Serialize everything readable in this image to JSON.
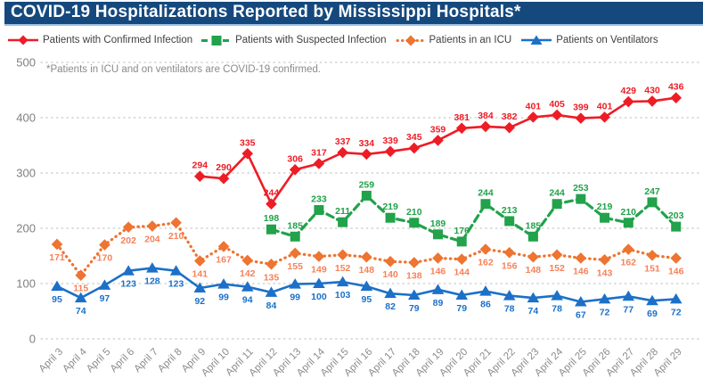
{
  "title": "COVID-19 Hospitalizations Reported by Mississippi Hospitals*",
  "footnote": "*Patients in ICU and on ventilators are COVID-19 confirmed.",
  "colors": {
    "title_bar_bg": "#15497E",
    "title_bar_underline": "#9DC3E6",
    "gridline": "#C8C8C8",
    "axis_label": "#7F7F7F",
    "confirmed_red": "#EE1C25",
    "suspected_green": "#21A24B",
    "icu_orange": "#ED7431",
    "ventilator_blue": "#1C70C8"
  },
  "chart_data": {
    "type": "line",
    "title": "COVID-19 Hospitalizations Reported by Mississippi Hospitals*",
    "footnote": "*Patients in ICU and on ventilators are COVID-19 confirmed.",
    "xlabel": "",
    "ylabel": "",
    "ylim": [
      0,
      500
    ],
    "yticks": [
      0,
      100,
      200,
      300,
      400,
      500
    ],
    "grid": "horizontal-dotted",
    "legend_position": "top",
    "x": [
      "April 3",
      "April 4",
      "April 5",
      "April 6",
      "April 7",
      "April 8",
      "April 9",
      "April 10",
      "April 11",
      "April 12",
      "April 13",
      "April 14",
      "April 15",
      "April 16",
      "April 17",
      "April 18",
      "April 19",
      "April 20",
      "April 21",
      "April 22",
      "April 23",
      "April 24",
      "April 25",
      "April 26",
      "April 27",
      "April 28",
      "April 29"
    ],
    "series": [
      {
        "name": "Patients with Confirmed Infection",
        "color": "#EE1C25",
        "marker": "diamond",
        "line": "solid",
        "label_position": "above",
        "values": [
          null,
          null,
          null,
          null,
          null,
          null,
          294,
          290,
          335,
          244,
          306,
          317,
          337,
          334,
          339,
          345,
          359,
          381,
          384,
          382,
          401,
          405,
          399,
          401,
          429,
          430,
          436
        ]
      },
      {
        "name": "Patients with Suspected Infection",
        "color": "#21A24B",
        "marker": "square",
        "line": "dashed",
        "label_position": "above",
        "values": [
          null,
          null,
          null,
          null,
          null,
          null,
          null,
          null,
          null,
          198,
          185,
          233,
          211,
          259,
          219,
          210,
          189,
          176,
          244,
          213,
          185,
          244,
          253,
          219,
          210,
          247,
          203
        ]
      },
      {
        "name": "Patients in an ICU",
        "color": "#ED7431",
        "label_color": "#F5825A",
        "marker": "diamond",
        "line": "dotted",
        "label_position": "below",
        "values": [
          171,
          115,
          170,
          202,
          204,
          210,
          141,
          167,
          142,
          135,
          155,
          149,
          152,
          148,
          140,
          138,
          146,
          144,
          162,
          156,
          148,
          152,
          146,
          143,
          162,
          151,
          146
        ]
      },
      {
        "name": "Patients on Ventilators",
        "color": "#1C70C8",
        "marker": "triangle",
        "line": "solid",
        "label_position": "below",
        "values": [
          95,
          74,
          97,
          123,
          128,
          123,
          92,
          99,
          94,
          84,
          99,
          100,
          103,
          95,
          82,
          79,
          89,
          79,
          86,
          78,
          74,
          78,
          67,
          72,
          77,
          69,
          72
        ]
      }
    ]
  }
}
